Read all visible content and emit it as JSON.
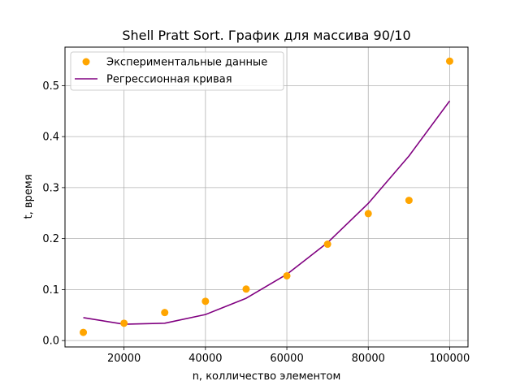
{
  "chart_data": {
    "type": "scatter",
    "title": "Shell Pratt Sort. График для массива 90/10",
    "xlabel": "n, колличество элементом",
    "ylabel": "t, время",
    "xlim": [
      5500,
      104500
    ],
    "ylim": [
      -0.0125,
      0.5755
    ],
    "x_ticks": [
      20000,
      40000,
      60000,
      80000,
      100000
    ],
    "x_tick_labels": [
      "20000",
      "40000",
      "60000",
      "80000",
      "100000"
    ],
    "y_ticks": [
      0.0,
      0.1,
      0.2,
      0.3,
      0.4,
      0.5
    ],
    "y_tick_labels": [
      "0.0",
      "0.1",
      "0.2",
      "0.3",
      "0.4",
      "0.5"
    ],
    "grid": true,
    "legend_position": "top-left",
    "series": [
      {
        "name": "Экспериментальные данные",
        "kind": "scatter",
        "color": "#ffa500",
        "x": [
          10000,
          20000,
          30000,
          40000,
          50000,
          60000,
          70000,
          80000,
          90000,
          100000
        ],
        "y": [
          0.016,
          0.034,
          0.055,
          0.077,
          0.101,
          0.127,
          0.189,
          0.249,
          0.275,
          0.548
        ]
      },
      {
        "name": "Регрессионная кривая",
        "kind": "line",
        "color": "#800080",
        "x": [
          10000,
          20000,
          30000,
          40000,
          50000,
          60000,
          70000,
          80000,
          90000,
          100000
        ],
        "y": [
          0.045,
          0.032,
          0.034,
          0.051,
          0.083,
          0.13,
          0.192,
          0.269,
          0.362,
          0.47
        ]
      }
    ]
  }
}
